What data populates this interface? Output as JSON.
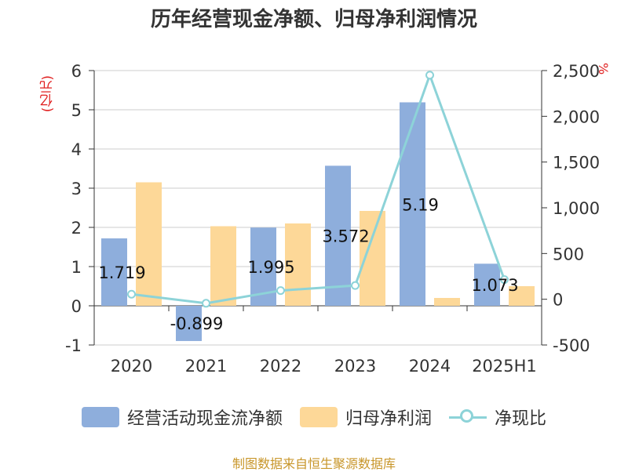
{
  "chart_data": {
    "type": "bar",
    "title": "历年经营现金净额、归母净利润情况",
    "y_unit_left": "(亿元)",
    "y_unit_right": "%",
    "categories": [
      "2020",
      "2021",
      "2022",
      "2023",
      "2024",
      "2025H1"
    ],
    "series": [
      {
        "name": "经营活动现金流净额",
        "type": "bar",
        "axis": "left",
        "color": "#8eaedc",
        "values": [
          1.719,
          -0.899,
          1.995,
          3.572,
          5.19,
          1.073
        ],
        "labels": [
          "1.719",
          "-0.899",
          "1.995",
          "3.572",
          "5.19",
          "1.073"
        ]
      },
      {
        "name": "归母净利润",
        "type": "bar",
        "axis": "left",
        "color": "#fdd898",
        "values": [
          3.15,
          2.03,
          2.1,
          2.42,
          0.2,
          0.5
        ]
      },
      {
        "name": "净现比",
        "type": "line",
        "axis": "right",
        "color": "#8dd3d8",
        "values": [
          55,
          -44,
          95,
          150,
          2450,
          215
        ]
      }
    ],
    "y_left": {
      "min": -1,
      "max": 6,
      "ticks": [
        -1,
        0,
        1,
        2,
        3,
        4,
        5,
        6
      ],
      "tick_labels": [
        "-1",
        "0",
        "1",
        "2",
        "3",
        "4",
        "5",
        "6"
      ]
    },
    "y_right": {
      "min": -500,
      "max": 2500,
      "ticks": [
        -500,
        0,
        500,
        1000,
        1500,
        2000,
        2500
      ],
      "tick_labels": [
        "-500",
        "0",
        "500",
        "1,000",
        "1,500",
        "2,000",
        "2,500"
      ]
    },
    "grid": true,
    "legend_position": "bottom"
  },
  "source": "制图数据来自恒生聚源数据库"
}
